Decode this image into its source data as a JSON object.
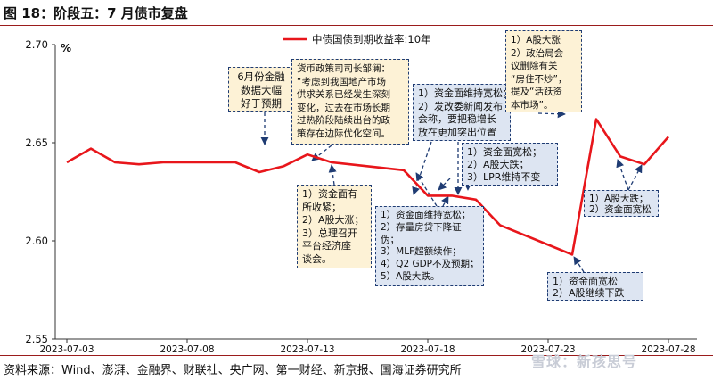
{
  "figure": {
    "title": "图 18：阶段五：7 月债市复盘",
    "source": "资料来源：Wind、澎湃、金融界、财联社、央广网、第一财经、新京报、国海证券研究所",
    "watermark": "雪球：新孩思号"
  },
  "chart_data": {
    "type": "line",
    "ylabel": "%",
    "ylim": [
      2.55,
      2.7
    ],
    "yticks": [
      "2.70",
      "2.65",
      "2.60",
      "2.55"
    ],
    "xticks": [
      "2023-07-03",
      "2023-07-08",
      "2023-07-13",
      "2023-07-18",
      "2023-07-23",
      "2023-07-28"
    ],
    "legend_position": "top-center",
    "series": [
      {
        "name": "中债国债到期收益率:10年",
        "color": "#e8161b",
        "x": [
          "2023-07-03",
          "2023-07-04",
          "2023-07-05",
          "2023-07-06",
          "2023-07-07",
          "2023-07-10",
          "2023-07-11",
          "2023-07-12",
          "2023-07-13",
          "2023-07-14",
          "2023-07-17",
          "2023-07-18",
          "2023-07-19",
          "2023-07-20",
          "2023-07-21",
          "2023-07-24",
          "2023-07-25",
          "2023-07-26",
          "2023-07-27",
          "2023-07-28"
        ],
        "values": [
          2.64,
          2.647,
          2.64,
          2.639,
          2.64,
          2.64,
          2.635,
          2.638,
          2.644,
          2.64,
          2.636,
          2.623,
          2.623,
          2.621,
          2.608,
          2.593,
          2.662,
          2.643,
          2.639,
          2.653
        ]
      }
    ]
  },
  "annotations": [
    {
      "id": "a1",
      "lines": [
        "6月份金融",
        "数据大幅",
        "好于预期"
      ]
    },
    {
      "id": "a2",
      "lines": [
        "货币政策司司长邹澜：",
        "“考虑到我国地产市场",
        "供求关系已经发生深刻",
        "变化，过去在市场长期",
        "过热阶段陆续出台的政",
        "策存在边际优化空间。"
      ]
    },
    {
      "id": "a3",
      "lines": [
        "1）资金面维持宽松；",
        "2）发改委新闻发布",
        "会称，要把稳增长",
        "放在更加突出位置"
      ]
    },
    {
      "id": "a4",
      "lines": [
        "1）A股大涨",
        "2）政治局会",
        "议删除有关",
        "“房住不炒”，",
        "提及“活跃资",
        "本市场”。"
      ]
    },
    {
      "id": "a5",
      "lines": [
        "1）资金面有",
        "所收紧；",
        "2）A股大涨；",
        "3）总理召开",
        "平台经济座",
        "谈会。"
      ]
    },
    {
      "id": "a6",
      "lines": [
        "1）资金面宽松；",
        "2）A股大跌；",
        "3）LPR维持不变"
      ]
    },
    {
      "id": "a7",
      "lines": [
        "1）资金面维持宽松；",
        "2）存量房贷下降证",
        "伪；",
        "3）MLF超额续作；",
        "4）Q2 GDP不及预期；",
        "5）A股大跌。"
      ]
    },
    {
      "id": "a8",
      "lines": [
        "1）A股大跌；",
        "2）资金面宽松"
      ]
    },
    {
      "id": "a9",
      "lines": [
        "1）资金面宽松",
        "2）A股继续下跌"
      ]
    }
  ]
}
